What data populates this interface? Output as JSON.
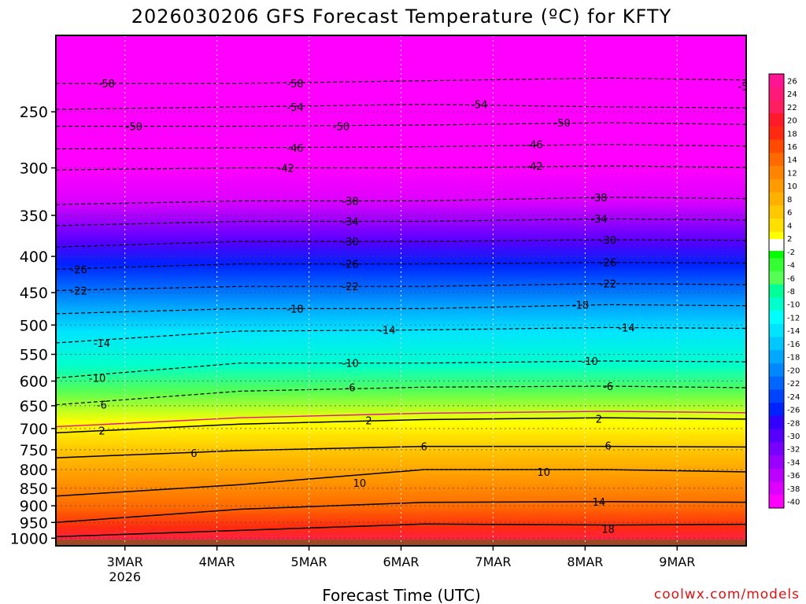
{
  "chart_data": {
    "type": "heatmap",
    "title": "2026030206 GFS Forecast Temperature (ºC) for KFTY",
    "xlabel": "Forecast Time (UTC)",
    "ylabel": "",
    "x_range": [
      "2026-03-02T06:00",
      "2026-03-09T18:00"
    ],
    "x_ticks": [
      {
        "date": "2026-03-03T00:00",
        "label": "3MAR",
        "sublabel": "2026"
      },
      {
        "date": "2026-03-04T00:00",
        "label": "4MAR",
        "sublabel": ""
      },
      {
        "date": "2026-03-05T00:00",
        "label": "5MAR",
        "sublabel": ""
      },
      {
        "date": "2026-03-06T00:00",
        "label": "6MAR",
        "sublabel": ""
      },
      {
        "date": "2026-03-07T00:00",
        "label": "7MAR",
        "sublabel": ""
      },
      {
        "date": "2026-03-08T00:00",
        "label": "8MAR",
        "sublabel": ""
      },
      {
        "date": "2026-03-09T00:00",
        "label": "9MAR",
        "sublabel": ""
      }
    ],
    "y_axis": {
      "scale": "log",
      "reversed": true,
      "range_hPa": [
        1025,
        195
      ],
      "ticks": [
        250,
        300,
        350,
        400,
        450,
        500,
        550,
        600,
        650,
        700,
        750,
        800,
        850,
        900,
        950,
        1000
      ]
    },
    "colorbar": {
      "values": [
        26,
        24,
        22,
        20,
        18,
        16,
        14,
        12,
        10,
        8,
        6,
        4,
        2,
        -2,
        -4,
        -6,
        -8,
        -10,
        -12,
        -14,
        -16,
        -18,
        -20,
        -22,
        -24,
        -26,
        -28,
        -30,
        -32,
        -34,
        -36,
        -38,
        -40
      ],
      "colors": {
        "26": "#ff1493",
        "24": "#ff1a7a",
        "22": "#ff1e60",
        "20": "#ff1a2a",
        "18": "#ff2a10",
        "16": "#ff4a00",
        "14": "#ff6a00",
        "12": "#ff8400",
        "10": "#ff9a00",
        "8": "#ffb000",
        "6": "#ffc800",
        "4": "#ffe000",
        "2": "#ffff00",
        "0": "#ffffff",
        "-2": "#00ff00",
        "-4": "#33ff33",
        "-6": "#55ff55",
        "-8": "#00ff99",
        "-10": "#00ffcc",
        "-12": "#00ffff",
        "-14": "#00e4ff",
        "-16": "#00c8ff",
        "-18": "#00a8ff",
        "-20": "#0088ff",
        "-22": "#0066ff",
        "-24": "#0044ff",
        "-26": "#0022ff",
        "-28": "#3300ff",
        "-30": "#5500ff",
        "-32": "#7700ff",
        "-34": "#9900ff",
        "-36": "#bb00ff",
        "-38": "#dd00ff",
        "-40": "#ff00ff"
      }
    },
    "contours": [
      {
        "value": -58,
        "profile": [
          [
            0,
            228
          ],
          [
            2,
            228
          ],
          [
            4,
            226
          ],
          [
            6,
            224
          ],
          [
            8,
            226
          ],
          [
            10,
            226
          ]
        ],
        "labels": [
          [
            0.55,
            228
          ],
          [
            2.6,
            228
          ]
        ]
      },
      {
        "value": -54,
        "profile": [
          [
            0,
            248
          ],
          [
            2,
            246
          ],
          [
            4,
            244
          ],
          [
            6,
            246
          ],
          [
            8,
            247
          ],
          [
            10,
            247
          ]
        ],
        "labels": [
          [
            2.6,
            246
          ],
          [
            4.6,
            244
          ],
          [
            7.5,
            230
          ]
        ]
      },
      {
        "value": -50,
        "profile": [
          [
            0,
            262
          ],
          [
            2,
            262
          ],
          [
            4,
            261
          ],
          [
            6,
            259
          ],
          [
            8,
            261
          ],
          [
            10,
            262
          ]
        ],
        "labels": [
          [
            0.85,
            262
          ],
          [
            3.1,
            262
          ],
          [
            5.5,
            259
          ],
          [
            8.6,
            250
          ]
        ]
      },
      {
        "value": -46,
        "profile": [
          [
            0,
            282
          ],
          [
            2,
            281
          ],
          [
            4,
            280
          ],
          [
            6,
            278
          ],
          [
            8,
            280
          ],
          [
            10,
            280
          ]
        ],
        "labels": [
          [
            2.6,
            281
          ],
          [
            5.2,
            278
          ],
          [
            8.6,
            264
          ]
        ]
      },
      {
        "value": -42,
        "profile": [
          [
            0,
            302
          ],
          [
            2,
            300
          ],
          [
            4,
            300
          ],
          [
            6,
            298
          ],
          [
            8,
            300
          ],
          [
            10,
            300
          ]
        ],
        "labels": [
          [
            2.5,
            300
          ],
          [
            5.2,
            298
          ],
          [
            8.6,
            282
          ]
        ]
      },
      {
        "value": -38,
        "profile": [
          [
            0,
            338
          ],
          [
            2,
            334
          ],
          [
            4,
            334
          ],
          [
            6,
            330
          ],
          [
            8,
            332
          ],
          [
            10,
            332
          ]
        ],
        "labels": [
          [
            3.2,
            334
          ],
          [
            5.9,
            330
          ],
          [
            8.6,
            305
          ]
        ]
      },
      {
        "value": -34,
        "profile": [
          [
            0,
            362
          ],
          [
            2,
            357
          ],
          [
            4,
            357
          ],
          [
            6,
            354
          ],
          [
            8,
            356
          ],
          [
            10,
            356
          ]
        ],
        "labels": [
          [
            3.2,
            357
          ],
          [
            5.9,
            354
          ],
          [
            8.6,
            338
          ]
        ]
      },
      {
        "value": -30,
        "profile": [
          [
            0,
            388
          ],
          [
            2,
            381
          ],
          [
            4,
            381
          ],
          [
            6,
            379
          ],
          [
            8,
            380
          ],
          [
            10,
            380
          ]
        ],
        "labels": [
          [
            3.2,
            381
          ],
          [
            6.0,
            379
          ],
          [
            8.6,
            362
          ]
        ]
      },
      {
        "value": -26,
        "profile": [
          [
            0,
            417
          ],
          [
            2,
            410
          ],
          [
            4,
            410
          ],
          [
            6,
            408
          ],
          [
            8,
            409
          ],
          [
            10,
            409
          ]
        ],
        "labels": [
          [
            0.25,
            417
          ],
          [
            3.2,
            410
          ],
          [
            6.0,
            408
          ],
          [
            8.5,
            392
          ]
        ]
      },
      {
        "value": -22,
        "profile": [
          [
            0,
            447
          ],
          [
            2,
            441
          ],
          [
            4,
            441
          ],
          [
            6,
            437
          ],
          [
            8,
            439
          ],
          [
            10,
            439
          ]
        ],
        "labels": [
          [
            0.25,
            447
          ],
          [
            3.2,
            441
          ],
          [
            6.0,
            437
          ],
          [
            8.4,
            420
          ]
        ]
      },
      {
        "value": -18,
        "profile": [
          [
            0,
            482
          ],
          [
            2,
            474
          ],
          [
            4,
            474
          ],
          [
            6,
            468
          ],
          [
            8,
            470
          ],
          [
            10,
            470
          ]
        ],
        "labels": [
          [
            2.6,
            474
          ],
          [
            5.7,
            468
          ],
          [
            8.4,
            447
          ]
        ]
      },
      {
        "value": -14,
        "profile": [
          [
            0,
            530
          ],
          [
            2,
            510
          ],
          [
            4,
            508
          ],
          [
            6,
            504
          ],
          [
            8,
            506
          ],
          [
            10,
            506
          ]
        ],
        "labels": [
          [
            0.5,
            530
          ],
          [
            3.6,
            508
          ],
          [
            6.2,
            504
          ],
          [
            8.6,
            506
          ]
        ]
      },
      {
        "value": -10,
        "profile": [
          [
            0,
            594
          ],
          [
            2,
            566
          ],
          [
            4,
            566
          ],
          [
            6,
            562
          ],
          [
            8,
            564
          ],
          [
            10,
            564
          ]
        ],
        "labels": [
          [
            0.45,
            594
          ],
          [
            3.2,
            566
          ],
          [
            5.8,
            562
          ],
          [
            8.4,
            564
          ]
        ]
      },
      {
        "value": -6,
        "profile": [
          [
            0,
            648
          ],
          [
            2,
            620
          ],
          [
            4,
            612
          ],
          [
            6,
            610
          ],
          [
            8,
            614
          ],
          [
            10,
            614
          ]
        ],
        "labels": [
          [
            0.5,
            648
          ],
          [
            3.2,
            612
          ],
          [
            6.0,
            610
          ],
          [
            8.4,
            614
          ]
        ]
      },
      {
        "value": 2,
        "profile": [
          [
            0,
            710
          ],
          [
            2,
            690
          ],
          [
            4,
            680
          ],
          [
            6,
            676
          ],
          [
            8,
            680
          ],
          [
            10,
            682
          ]
        ],
        "labels": [
          [
            0.5,
            705
          ],
          [
            3.4,
            682
          ],
          [
            5.9,
            678
          ],
          [
            8.3,
            690
          ]
        ]
      },
      {
        "value": 6,
        "profile": [
          [
            0,
            770
          ],
          [
            2,
            752
          ],
          [
            4,
            742
          ],
          [
            6,
            742
          ],
          [
            8,
            744
          ],
          [
            10,
            744
          ]
        ],
        "labels": [
          [
            1.5,
            758
          ],
          [
            4.0,
            742
          ],
          [
            6.0,
            740
          ],
          [
            8.3,
            744
          ]
        ]
      },
      {
        "value": 10,
        "profile": [
          [
            0,
            872
          ],
          [
            2,
            840
          ],
          [
            4,
            800
          ],
          [
            6,
            800
          ],
          [
            8,
            808
          ],
          [
            10,
            808
          ]
        ],
        "labels": [
          [
            3.3,
            835
          ],
          [
            5.3,
            806
          ],
          [
            7.9,
            815
          ]
        ]
      },
      {
        "value": 14,
        "profile": [
          [
            0,
            950
          ],
          [
            2,
            910
          ],
          [
            4,
            890
          ],
          [
            6,
            888
          ],
          [
            8,
            890
          ],
          [
            10,
            890
          ]
        ],
        "labels": [
          [
            5.9,
            888
          ],
          [
            8.3,
            890
          ]
        ]
      },
      {
        "value": 18,
        "profile": [
          [
            0,
            995
          ],
          [
            2,
            975
          ],
          [
            4,
            955
          ],
          [
            6,
            958
          ],
          [
            8,
            955
          ],
          [
            10,
            958
          ]
        ],
        "labels": [
          [
            6.0,
            970
          ],
          [
            8.3,
            968
          ]
        ]
      }
    ],
    "zero_line": {
      "value": 0,
      "color": "#e0148c"
    },
    "ground": {
      "color": "#9c4a24",
      "below_hPa": 1000
    },
    "grid": true
  },
  "credit": "coolwx.com/models"
}
